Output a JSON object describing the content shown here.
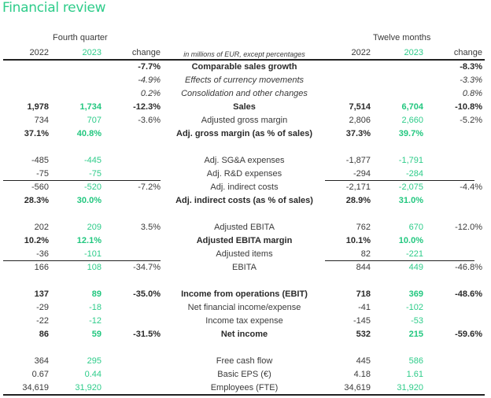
{
  "title": "Financial review",
  "groups": {
    "quarter": "Fourth quarter",
    "year": "Twelve months"
  },
  "header": {
    "q_2022": "2022",
    "q_2023": "2023",
    "q_change": "change",
    "note": "in millions of EUR, except percentages",
    "y_2022": "2022",
    "y_2023": "2023",
    "y_change": "change"
  },
  "colors": {
    "accent": "#2ecc8a",
    "text": "#3a3a3a",
    "rule": "#222222"
  },
  "rows": [
    {
      "label": "Comparable sales growth",
      "q22": "",
      "q23": "",
      "qch": "-7.7%",
      "y22": "",
      "y23": "",
      "ych": "-8.3%",
      "style": "bold"
    },
    {
      "label": "Effects of currency movements",
      "q22": "",
      "q23": "",
      "qch": "-4.9%",
      "y22": "",
      "y23": "",
      "ych": "-3.3%",
      "style": "italic"
    },
    {
      "label": "Consolidation and other changes",
      "q22": "",
      "q23": "",
      "qch": "0.2%",
      "y22": "",
      "y23": "",
      "ych": "0.8%",
      "style": "italic"
    },
    {
      "label": "Sales",
      "q22": "1,978",
      "q23": "1,734",
      "qch": "-12.3%",
      "y22": "7,514",
      "y23": "6,704",
      "ych": "-10.8%",
      "style": "bold-nums"
    },
    {
      "label": "Adjusted gross margin",
      "q22": "734",
      "q23": "707",
      "qch": "-3.6%",
      "y22": "2,806",
      "y23": "2,660",
      "ych": "-5.2%",
      "style": "normal"
    },
    {
      "label": "Adj. gross margin (as % of sales)",
      "q22": "37.1%",
      "q23": "40.8%",
      "qch": "",
      "y22": "37.3%",
      "y23": "39.7%",
      "ych": "",
      "style": "bold"
    },
    {
      "label": "Adj. SG&A expenses",
      "q22": "-485",
      "q23": "-445",
      "qch": "",
      "y22": "-1,877",
      "y23": "-1,791",
      "ych": "",
      "style": "normal"
    },
    {
      "label": "Adj. R&D expenses",
      "q22": "-75",
      "q23": "-75",
      "qch": "",
      "y22": "-294",
      "y23": "-284",
      "ych": "",
      "style": "normal"
    },
    {
      "label": "Adj. indirect costs",
      "q22": "-560",
      "q23": "-520",
      "qch": "-7.2%",
      "y22": "-2,171",
      "y23": "-2,075",
      "ych": "-4.4%",
      "style": "normal"
    },
    {
      "label": "Adj. indirect costs (as % of sales)",
      "q22": "28.3%",
      "q23": "30.0%",
      "qch": "",
      "y22": "28.9%",
      "y23": "31.0%",
      "ych": "",
      "style": "bold"
    },
    {
      "label": "Adjusted EBITA",
      "q22": "202",
      "q23": "209",
      "qch": "3.5%",
      "y22": "762",
      "y23": "670",
      "ych": "-12.0%",
      "style": "normal"
    },
    {
      "label": "Adjusted EBITA margin",
      "q22": "10.2%",
      "q23": "12.1%",
      "qch": "",
      "y22": "10.1%",
      "y23": "10.0%",
      "ych": "",
      "style": "bold"
    },
    {
      "label": "Adjusted items",
      "q22": "-36",
      "q23": "-101",
      "qch": "",
      "y22": "82",
      "y23": "-221",
      "ych": "",
      "style": "normal"
    },
    {
      "label": "EBITA",
      "q22": "166",
      "q23": "108",
      "qch": "-34.7%",
      "y22": "844",
      "y23": "449",
      "ych": "-46.8%",
      "style": "normal"
    },
    {
      "label": "Income from operations (EBIT)",
      "q22": "137",
      "q23": "89",
      "qch": "-35.0%",
      "y22": "718",
      "y23": "369",
      "ych": "-48.6%",
      "style": "bold"
    },
    {
      "label": "Net financial income/expense",
      "q22": "-29",
      "q23": "-18",
      "qch": "",
      "y22": "-41",
      "y23": "-102",
      "ych": "",
      "style": "normal"
    },
    {
      "label": "Income tax expense",
      "q22": "-22",
      "q23": "-12",
      "qch": "",
      "y22": "-145",
      "y23": "-53",
      "ych": "",
      "style": "normal"
    },
    {
      "label": "Net income",
      "q22": "86",
      "q23": "59",
      "qch": "-31.5%",
      "y22": "532",
      "y23": "215",
      "ych": "-59.6%",
      "style": "bold"
    },
    {
      "label": "Free cash flow",
      "q22": "364",
      "q23": "295",
      "qch": "",
      "y22": "445",
      "y23": "586",
      "ych": "",
      "style": "normal"
    },
    {
      "label": "Basic EPS (€)",
      "q22": "0.67",
      "q23": "0.44",
      "qch": "",
      "y22": "4.18",
      "y23": "1.61",
      "ych": "",
      "style": "normal"
    },
    {
      "label": "Employees (FTE)",
      "q22": "34,619",
      "q23": "31,920",
      "qch": "",
      "y22": "34,619",
      "y23": "31,920",
      "ych": "",
      "style": "normal"
    }
  ]
}
